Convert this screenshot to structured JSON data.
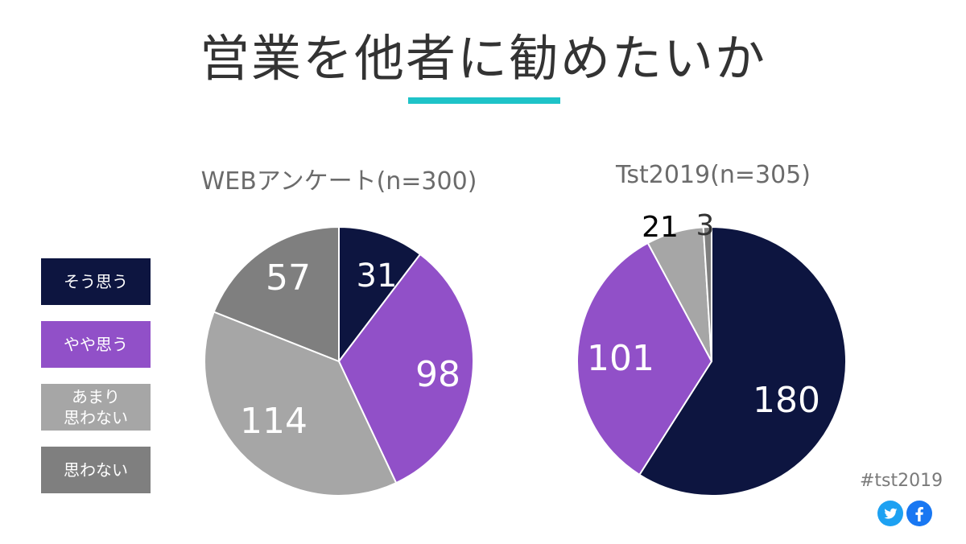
{
  "page": {
    "title": "営業を他者に勧めたいか",
    "accent_color": "#1EC3C8"
  },
  "legend": [
    {
      "label": "そう思う",
      "color": "#0D1540"
    },
    {
      "label": "やや思う",
      "color": "#9150C8"
    },
    {
      "label": "あまり\n思わない",
      "color": "#A6A6A6"
    },
    {
      "label": "思わない",
      "color": "#7F7F7F"
    }
  ],
  "chart_data": [
    {
      "type": "pie",
      "title": "WEBアンケート(n=300)",
      "categories": [
        "そう思う",
        "やや思う",
        "あまり思わない",
        "思わない"
      ],
      "values": [
        31,
        98,
        114,
        57
      ],
      "colors": [
        "#0D1540",
        "#9150C8",
        "#A6A6A6",
        "#7F7F7F"
      ],
      "label_colors": [
        "#ffffff",
        "#ffffff",
        "#ffffff",
        "#ffffff"
      ]
    },
    {
      "type": "pie",
      "title": "Tst2019(n=305)",
      "categories": [
        "そう思う",
        "やや思う",
        "あまり思わない",
        "思わない"
      ],
      "values": [
        180,
        101,
        21,
        3
      ],
      "colors": [
        "#0D1540",
        "#9150C8",
        "#A6A6A6",
        "#7F7F7F"
      ],
      "label_colors": [
        "#ffffff",
        "#ffffff",
        "#000000",
        "#333333"
      ]
    }
  ],
  "footer": {
    "hashtag": "#tst2019",
    "twitter_color": "#1DA1F2",
    "facebook_color": "#1877F2"
  }
}
